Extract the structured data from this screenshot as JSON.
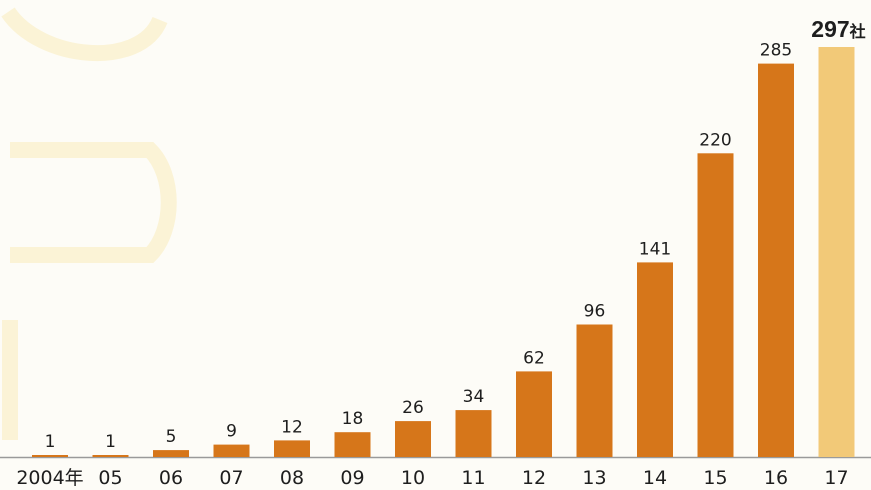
{
  "chart_data": {
    "type": "bar",
    "categories": [
      "2004年",
      "05",
      "06",
      "07",
      "08",
      "09",
      "10",
      "11",
      "12",
      "13",
      "14",
      "15",
      "16",
      "17"
    ],
    "values": [
      1,
      1,
      5,
      9,
      12,
      18,
      26,
      34,
      62,
      96,
      141,
      220,
      285,
      297
    ],
    "data_labels": [
      "1",
      "1",
      "5",
      "9",
      "12",
      "18",
      "26",
      "34",
      "62",
      "96",
      "141",
      "220",
      "285",
      "297"
    ],
    "last_value_unit": "社",
    "title": "",
    "xlabel": "",
    "ylabel": "",
    "ylim": [
      0,
      297
    ],
    "grid": false,
    "legend": "none",
    "colors": {
      "bar": "#d6761a",
      "bar_highlight": "#f2c978",
      "baseline": "#9a9a9a",
      "text": "#1e1e1e"
    }
  }
}
